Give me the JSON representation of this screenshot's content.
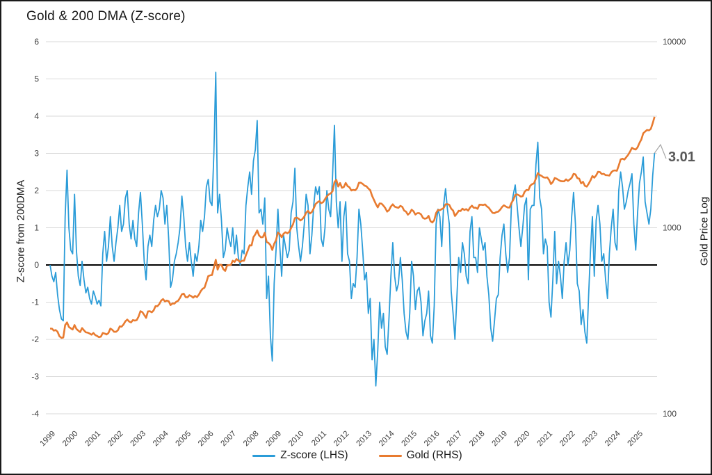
{
  "title": "Gold & 200 DMA (Z-score)",
  "annotation": {
    "label": "3.01"
  },
  "legend": [
    {
      "label": "Z-score (LHS)",
      "color": "#2B9CD8"
    },
    {
      "label": "Gold (RHS)",
      "color": "#E87B30"
    }
  ],
  "colors": {
    "background": "#FFFFFF",
    "gridline": "#D9D9D9",
    "zero_line": "#000000",
    "tick_text": "#404040",
    "title_text": "#161616",
    "annotation_text": "#595959",
    "leader_line": "#A6A6A6",
    "zscore_line": "#2B9CD8",
    "gold_line": "#E87B30"
  },
  "chart_data": {
    "type": "line",
    "title": "Gold & 200 DMA (Z-score)",
    "grid": "horizontal",
    "legend_position": "bottom",
    "x_start_year": 1999.0,
    "x_step_months": 1,
    "x_end_year": 2025.75,
    "left_axis": {
      "label": "Z-score from 200DMA",
      "min": -4,
      "max": 6,
      "ticks": [
        6,
        5,
        4,
        3,
        2,
        1,
        0,
        -1,
        -2,
        -3,
        -4
      ],
      "zero_line": true
    },
    "right_axis": {
      "label": "Gold Price Log",
      "scale": "log",
      "min": 100,
      "max": 10000,
      "ticks": [
        10000,
        1000,
        100
      ]
    },
    "x_axis": {
      "ticks": [
        1999,
        2000,
        2001,
        2002,
        2003,
        2004,
        2005,
        2006,
        2007,
        2008,
        2009,
        2010,
        2011,
        2012,
        2013,
        2014,
        2015,
        2016,
        2017,
        2018,
        2019,
        2020,
        2021,
        2022,
        2023,
        2024,
        2025
      ]
    },
    "series": [
      {
        "name": "Z-score (LHS)",
        "axis": "left",
        "color": "#2B9CD8",
        "last_value": 3.01,
        "values": [
          0.0,
          -0.3,
          -0.45,
          -0.2,
          -0.8,
          -1.2,
          -1.45,
          -1.5,
          1.3,
          2.55,
          1.0,
          0.4,
          0.3,
          1.9,
          0.4,
          -0.3,
          -0.55,
          0.1,
          -0.4,
          -0.75,
          -0.6,
          -0.9,
          -1.05,
          -0.7,
          -0.85,
          -1.05,
          -0.95,
          -1.1,
          0.3,
          0.9,
          0.1,
          0.5,
          1.3,
          0.5,
          0.1,
          0.6,
          1.0,
          1.6,
          0.9,
          1.1,
          1.8,
          2.0,
          1.1,
          0.7,
          1.2,
          0.7,
          0.5,
          1.4,
          1.95,
          1.1,
          0.1,
          -0.4,
          0.5,
          0.8,
          0.5,
          1.2,
          1.6,
          1.3,
          1.5,
          2.0,
          1.8,
          1.1,
          1.6,
          0.7,
          -0.6,
          -0.4,
          0.1,
          0.3,
          0.6,
          1.0,
          1.85,
          1.3,
          0.5,
          0.1,
          0.6,
          0.1,
          -0.3,
          0.3,
          0.1,
          0.5,
          1.2,
          0.9,
          1.3,
          2.1,
          2.3,
          1.7,
          1.6,
          3.0,
          5.18,
          1.4,
          1.9,
          1.2,
          0.2,
          0.4,
          1.0,
          0.7,
          0.5,
          1.0,
          0.3,
          0.8,
          0.2,
          0.0,
          0.4,
          0.3,
          1.6,
          2.1,
          2.5,
          1.9,
          2.8,
          3.1,
          3.88,
          1.4,
          1.5,
          1.1,
          1.8,
          -0.9,
          -0.3,
          -1.9,
          -2.58,
          -0.5,
          0.4,
          1.5,
          0.5,
          -0.3,
          0.8,
          0.5,
          0.2,
          0.4,
          1.4,
          1.7,
          2.6,
          1.0,
          0.5,
          0.1,
          0.5,
          1.1,
          1.9,
          1.6,
          0.3,
          0.8,
          1.6,
          2.1,
          1.9,
          2.1,
          0.7,
          0.5,
          1.0,
          2.0,
          1.5,
          1.3,
          2.4,
          3.75,
          1.7,
          1.0,
          1.7,
          0.1,
          1.3,
          1.7,
          0.3,
          0.1,
          -0.9,
          -0.5,
          -0.6,
          0.2,
          1.5,
          1.1,
          0.4,
          -0.4,
          -0.2,
          -1.3,
          -0.9,
          -2.55,
          -2.0,
          -3.25,
          -2.3,
          -1.0,
          -1.7,
          -1.3,
          -2.2,
          -2.4,
          -1.4,
          -0.3,
          0.6,
          -0.3,
          -0.7,
          -0.5,
          0.2,
          -0.4,
          -1.3,
          -1.8,
          -2.0,
          -1.3,
          0.1,
          -0.3,
          -1.2,
          -0.7,
          -0.6,
          -1.0,
          -1.9,
          -1.5,
          -1.3,
          -0.7,
          -1.9,
          -2.1,
          -1.1,
          1.1,
          1.5,
          1.3,
          0.5,
          1.6,
          2.05,
          1.5,
          1.1,
          -0.7,
          -1.3,
          -2.0,
          -0.9,
          0.2,
          -0.2,
          0.6,
          0.3,
          -0.3,
          -0.5,
          0.9,
          1.3,
          0.2,
          0.2,
          -0.2,
          1.0,
          0.7,
          0.4,
          0.6,
          -0.3,
          -0.8,
          -1.7,
          -2.05,
          -1.5,
          -0.9,
          -0.8,
          0.2,
          0.8,
          1.1,
          0.3,
          -0.2,
          0.2,
          1.6,
          1.9,
          2.15,
          1.6,
          1.0,
          0.5,
          1.0,
          1.6,
          1.8,
          -0.4,
          1.5,
          1.6,
          1.6,
          2.7,
          3.3,
          1.8,
          1.5,
          0.3,
          0.7,
          0.5,
          -1.0,
          -1.4,
          -0.4,
          0.9,
          -0.5,
          0.1,
          -0.3,
          -0.9,
          0.1,
          0.6,
          0.0,
          0.4,
          1.3,
          1.95,
          1.1,
          -0.5,
          -0.7,
          -1.6,
          -1.2,
          -1.8,
          -2.1,
          -0.8,
          0.4,
          1.3,
          -0.3,
          1.2,
          1.6,
          1.1,
          0.1,
          0.3,
          -0.4,
          -0.9,
          0.3,
          1.0,
          1.5,
          0.6,
          0.4,
          2.0,
          2.5,
          2.1,
          1.5,
          1.7,
          2.0,
          2.2,
          2.45,
          1.1,
          0.4,
          1.4,
          2.2,
          2.5,
          2.9,
          1.7,
          1.4,
          1.1,
          1.5,
          2.4,
          3.01
        ]
      },
      {
        "name": "Gold (RHS)",
        "axis": "right",
        "color": "#E87B30",
        "last_value": 3950,
        "values": [
          287,
          287,
          280,
          282,
          276,
          261,
          256,
          257,
          300,
          310,
          293,
          288,
          284,
          300,
          286,
          280,
          275,
          289,
          281,
          274,
          273,
          270,
          266,
          272,
          265,
          262,
          258,
          260,
          272,
          270,
          267,
          272,
          287,
          283,
          276,
          276,
          281,
          295,
          294,
          302,
          314,
          321,
          313,
          310,
          319,
          317,
          319,
          333,
          356,
          352,
          340,
          328,
          355,
          356,
          351,
          360,
          379,
          379,
          389,
          406,
          414,
          402,
          406,
          403,
          384,
          392,
          391,
          400,
          405,
          420,
          439,
          442,
          424,
          423,
          434,
          429,
          421,
          430,
          424,
          437,
          456,
          470,
          476,
          510,
          550,
          555,
          557,
          611,
          673,
          596,
          633,
          632,
          599,
          586,
          627,
          630,
          631,
          665,
          655,
          679,
          667,
          655,
          665,
          665,
          713,
          755,
          806,
          803,
          890,
          922,
          968,
          910,
          889,
          890,
          940,
          839,
          829,
          807,
          760,
          820,
          858,
          943,
          924,
          890,
          929,
          946,
          934,
          950,
          997,
          1043,
          1127,
          1135,
          1118,
          1095,
          1114,
          1149,
          1205,
          1233,
          1193,
          1216,
          1271,
          1342,
          1370,
          1391,
          1356,
          1373,
          1424,
          1474,
          1512,
          1529,
          1573,
          1757,
          1810,
          1666,
          1739,
          1640,
          1656,
          1743,
          1674,
          1650,
          1586,
          1599,
          1590,
          1630,
          1745,
          1747,
          1722,
          1685,
          1671,
          1627,
          1593,
          1487,
          1414,
          1343,
          1287,
          1351,
          1348,
          1316,
          1276,
          1221,
          1244,
          1301,
          1337,
          1299,
          1288,
          1279,
          1311,
          1296,
          1238,
          1222,
          1176,
          1200,
          1251,
          1227,
          1178,
          1198,
          1199,
          1181,
          1130,
          1118,
          1125,
          1159,
          1086,
          1068,
          1097,
          1200,
          1246,
          1242,
          1260,
          1276,
          1337,
          1340,
          1327,
          1266,
          1238,
          1157,
          1192,
          1234,
          1231,
          1266,
          1246,
          1260,
          1236,
          1283,
          1314,
          1280,
          1282,
          1264,
          1331,
          1330,
          1325,
          1335,
          1303,
          1281,
          1238,
          1202,
          1198,
          1215,
          1221,
          1250,
          1292,
          1320,
          1301,
          1286,
          1284,
          1359,
          1413,
          1500,
          1511,
          1495,
          1471,
          1479,
          1561,
          1597,
          1592,
          1683,
          1716,
          1732,
          1843,
          1969,
          1922,
          1900,
          1866,
          1858,
          1867,
          1808,
          1718,
          1762,
          1850,
          1835,
          1807,
          1784,
          1777,
          1777,
          1820,
          1787,
          1817,
          1856,
          1948,
          1937,
          1849,
          1836,
          1733,
          1766,
          1681,
          1664,
          1725,
          1798,
          1898,
          1858,
          1913,
          2000,
          1992,
          1943,
          1951,
          1918,
          1916,
          1907,
          1984,
          2026,
          2034,
          2023,
          2160,
          2331,
          2351,
          2327,
          2398,
          2470,
          2568,
          2690,
          2651,
          2633,
          2708,
          2858,
          2983,
          3218,
          3289,
          3353,
          3338,
          3397,
          3642,
          3950
        ]
      }
    ]
  },
  "axes": {
    "left": {
      "title": "Z-score from 200DMA"
    },
    "right": {
      "title": "Gold Price Log"
    },
    "x": {
      "first": "1999",
      "last": "2025"
    }
  }
}
